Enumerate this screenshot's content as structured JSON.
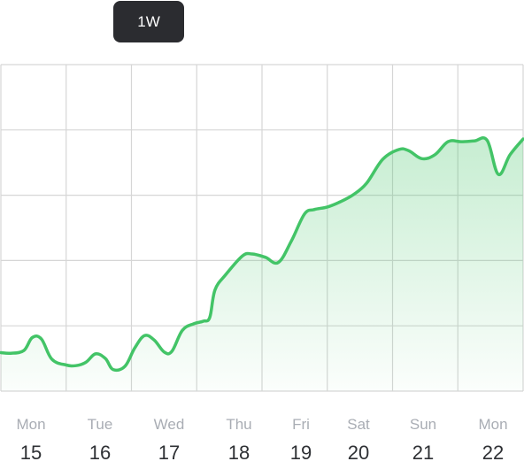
{
  "range_selector": {
    "selected": "1W"
  },
  "colors": {
    "line": "#43c467",
    "fill_top": "#43c467",
    "grid": "#d6d6d6",
    "button_bg": "#2b2c30"
  },
  "chart_data": {
    "type": "area",
    "x_ticks": [
      {
        "day": "Mon",
        "date": "15"
      },
      {
        "day": "Tue",
        "date": "16"
      },
      {
        "day": "Wed",
        "date": "17"
      },
      {
        "day": "Thu",
        "date": "18"
      },
      {
        "day": "Fri",
        "date": "19"
      },
      {
        "day": "Sat",
        "date": "20"
      },
      {
        "day": "Sun",
        "date": "21"
      },
      {
        "day": "Mon",
        "date": "22"
      }
    ],
    "x_range": [
      0,
      8
    ],
    "ylim": [
      0,
      5
    ],
    "grid": true,
    "legend": "none",
    "series": [
      {
        "values": [
          [
            0.0,
            0.59
          ],
          [
            0.15,
            0.58
          ],
          [
            0.35,
            0.62
          ],
          [
            0.48,
            0.82
          ],
          [
            0.62,
            0.8
          ],
          [
            0.78,
            0.49
          ],
          [
            1.0,
            0.4
          ],
          [
            1.15,
            0.39
          ],
          [
            1.3,
            0.44
          ],
          [
            1.45,
            0.57
          ],
          [
            1.6,
            0.5
          ],
          [
            1.72,
            0.33
          ],
          [
            1.9,
            0.38
          ],
          [
            2.05,
            0.66
          ],
          [
            2.2,
            0.85
          ],
          [
            2.35,
            0.78
          ],
          [
            2.5,
            0.6
          ],
          [
            2.62,
            0.61
          ],
          [
            2.78,
            0.93
          ],
          [
            2.95,
            1.03
          ],
          [
            3.1,
            1.07
          ],
          [
            3.2,
            1.13
          ],
          [
            3.28,
            1.55
          ],
          [
            3.45,
            1.79
          ],
          [
            3.7,
            2.07
          ],
          [
            3.85,
            2.1
          ],
          [
            4.05,
            2.05
          ],
          [
            4.25,
            1.97
          ],
          [
            4.45,
            2.3
          ],
          [
            4.65,
            2.71
          ],
          [
            4.8,
            2.78
          ],
          [
            5.0,
            2.82
          ],
          [
            5.2,
            2.9
          ],
          [
            5.4,
            3.01
          ],
          [
            5.6,
            3.18
          ],
          [
            5.85,
            3.55
          ],
          [
            6.1,
            3.7
          ],
          [
            6.25,
            3.68
          ],
          [
            6.45,
            3.56
          ],
          [
            6.65,
            3.62
          ],
          [
            6.85,
            3.82
          ],
          [
            7.05,
            3.82
          ],
          [
            7.25,
            3.83
          ],
          [
            7.45,
            3.84
          ],
          [
            7.62,
            3.32
          ],
          [
            7.8,
            3.62
          ],
          [
            8.0,
            3.86
          ]
        ]
      }
    ]
  }
}
